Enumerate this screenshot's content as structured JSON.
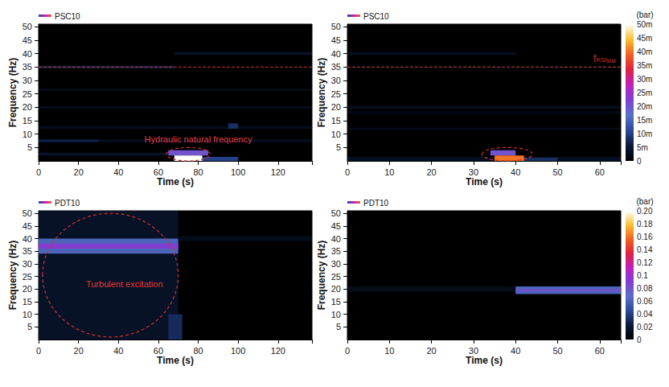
{
  "chart_data": [
    {
      "type": "heatmap",
      "title": "PSC10",
      "x_label": "Time (s)",
      "y_label": "Frequency (Hz)",
      "xlim": [
        0,
        137
      ],
      "xticks": [
        0,
        20,
        40,
        60,
        80,
        100,
        120
      ],
      "ylim": [
        0,
        51
      ],
      "yticks": [
        5,
        10,
        15,
        20,
        25,
        30,
        35,
        40,
        45,
        50
      ],
      "grid": false,
      "cells": [
        [
          0,
          65,
          2,
          3,
          0.004
        ],
        [
          0,
          137,
          7,
          8,
          0.003
        ],
        [
          0,
          30,
          7,
          8,
          0.006
        ],
        [
          0,
          137,
          12,
          13,
          0.003
        ],
        [
          0,
          137,
          19.5,
          20.5,
          0.0025
        ],
        [
          0,
          137,
          26,
          27,
          0.002
        ],
        [
          0,
          68,
          34.5,
          35.5,
          0.006
        ],
        [
          68,
          137,
          39.5,
          40.5,
          0.004
        ],
        [
          95,
          100,
          12,
          14,
          0.008
        ],
        [
          82,
          100,
          0,
          1.5,
          0.01
        ],
        [
          65,
          85,
          2,
          4,
          0.02
        ],
        [
          68,
          82,
          0,
          2,
          0.05
        ]
      ],
      "rsi_line": {
        "value": 35
      },
      "annotations": [
        {
          "text": "Hydraulic natural frequency",
          "at": [
            80,
            8
          ],
          "region": {
            "t": [
              64,
              86
            ],
            "f": [
              0,
              5
            ]
          }
        }
      ]
    },
    {
      "type": "heatmap",
      "title": "PSC10",
      "x_label": "Time (s)",
      "y_label": "Frequency (Hz)",
      "xlim": [
        0,
        65
      ],
      "xticks": [
        0,
        10,
        20,
        30,
        40,
        50,
        60
      ],
      "ylim": [
        0,
        51
      ],
      "yticks": [
        5,
        10,
        15,
        20,
        25,
        30,
        35,
        40,
        45,
        50
      ],
      "grid": false,
      "cells": [
        [
          0,
          65,
          0,
          1.5,
          0.003
        ],
        [
          0,
          65,
          11.5,
          12.5,
          0.002
        ],
        [
          0,
          65,
          17.5,
          18.5,
          0.002
        ],
        [
          0,
          65,
          19.5,
          20.5,
          0.003
        ],
        [
          0,
          65,
          34.5,
          35.5,
          0.0015
        ],
        [
          0,
          40,
          39.5,
          40.5,
          0.003
        ],
        [
          42,
          50,
          0,
          1.2,
          0.008
        ],
        [
          34,
          40,
          2,
          4,
          0.02
        ],
        [
          35,
          42,
          0,
          2,
          0.04
        ]
      ],
      "rsi_line": {
        "value": 35,
        "label": [
          "f",
          "RSI",
          "stat"
        ]
      },
      "annotations": [
        {
          "region": {
            "t": [
              32,
              44
            ],
            "f": [
              0,
              5
            ]
          }
        }
      ],
      "colorbar": {
        "unit": "(bar)",
        "range": [
          0,
          0.05
        ],
        "ticks": [
          0,
          {
            "value": 0.005,
            "label": "5m"
          },
          {
            "value": 0.01,
            "label": "10m"
          },
          {
            "value": 0.015,
            "label": "15m"
          },
          {
            "value": 0.02,
            "label": "20m"
          },
          {
            "value": 0.025,
            "label": "25m"
          },
          {
            "value": 0.03,
            "label": "30m"
          },
          {
            "value": 0.035,
            "label": "35m"
          },
          {
            "value": 0.04,
            "label": "40m"
          },
          {
            "value": 0.045,
            "label": "45m"
          },
          {
            "value": 0.05,
            "label": "50m"
          }
        ]
      }
    },
    {
      "type": "heatmap",
      "title": "PDT10",
      "x_label": "Time (s)",
      "y_label": "Frequency (Hz)",
      "xlim": [
        0,
        137
      ],
      "xticks": [
        0,
        20,
        40,
        60,
        80,
        100,
        120
      ],
      "ylim": [
        0,
        51
      ],
      "yticks": [
        5,
        10,
        15,
        20,
        25,
        30,
        35,
        40,
        45,
        50
      ],
      "grid": false,
      "cells": [
        [
          0,
          70,
          0,
          51,
          0.015
        ],
        [
          65,
          72,
          0,
          10,
          0.03
        ],
        [
          0,
          70,
          34,
          40,
          0.06
        ],
        [
          0,
          70,
          36,
          38,
          0.09
        ],
        [
          70,
          137,
          39,
          41,
          0.01
        ]
      ],
      "annotations": [
        {
          "text": "Turbulent excitation",
          "at": [
            43,
            22
          ],
          "region": {
            "t": [
              2,
              70
            ],
            "f": [
              1,
              50
            ]
          }
        }
      ]
    },
    {
      "type": "heatmap",
      "title": "PDT10",
      "x_label": "Time (s)",
      "y_label": "Frequency (Hz)",
      "xlim": [
        0,
        65
      ],
      "xticks": [
        0,
        10,
        20,
        30,
        40,
        50,
        60
      ],
      "ylim": [
        0,
        51
      ],
      "yticks": [
        5,
        10,
        15,
        20,
        25,
        30,
        35,
        40,
        45,
        50
      ],
      "grid": false,
      "cells": [
        [
          0,
          40,
          19,
          21,
          0.01
        ],
        [
          40,
          65,
          18,
          21,
          0.06
        ],
        [
          40,
          65,
          19,
          20,
          0.08
        ]
      ],
      "colorbar": {
        "unit": "(bar)",
        "range": [
          0,
          0.2
        ],
        "ticks": [
          0,
          0.02,
          0.04,
          0.06,
          0.08,
          0.1,
          0.12,
          0.14,
          0.16,
          0.18,
          {
            "value": 0.2,
            "label": "0.20"
          }
        ]
      }
    }
  ]
}
